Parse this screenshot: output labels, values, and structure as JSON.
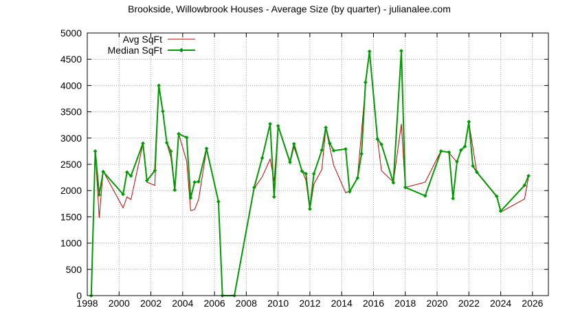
{
  "colors": {
    "avg": "#c00000",
    "median": "#009900",
    "grid": "#a0a0a0",
    "axis": "#000000"
  },
  "chart_data": {
    "type": "line",
    "title": "Brookside, Willowbrook Houses - Average Size (by quarter) - julianalee.com",
    "xlim": [
      1998,
      2027
    ],
    "ylim": [
      0,
      5000
    ],
    "x_ticks": [
      1998,
      2000,
      2002,
      2004,
      2006,
      2008,
      2010,
      2012,
      2014,
      2016,
      2018,
      2020,
      2022,
      2024,
      2026
    ],
    "y_ticks": [
      0,
      500,
      1000,
      1500,
      2000,
      2500,
      3000,
      3500,
      4000,
      4500,
      5000
    ],
    "grid": true,
    "legend_position": "top-left",
    "series": [
      {
        "name": "Avg SqFt",
        "marker": "none",
        "points": [
          [
            1998.25,
            0
          ],
          [
            1998.5,
            2750
          ],
          [
            1998.75,
            1480
          ],
          [
            1999.0,
            2370
          ],
          [
            2000.25,
            1670
          ],
          [
            2000.5,
            1880
          ],
          [
            2000.75,
            1830
          ],
          [
            2001.5,
            2890
          ],
          [
            2001.75,
            2160
          ],
          [
            2002.25,
            2100
          ],
          [
            2002.5,
            3980
          ],
          [
            2002.75,
            3500
          ],
          [
            2003.0,
            2900
          ],
          [
            2003.25,
            2640
          ],
          [
            2003.5,
            2020
          ],
          [
            2003.75,
            3080
          ],
          [
            2004.25,
            2560
          ],
          [
            2004.5,
            1620
          ],
          [
            2004.75,
            1640
          ],
          [
            2005.0,
            1830
          ],
          [
            2005.5,
            2780
          ],
          [
            2006.25,
            1800
          ],
          [
            2006.5,
            0
          ],
          [
            2007.25,
            0
          ],
          [
            2008.5,
            2040
          ],
          [
            2009.0,
            2260
          ],
          [
            2009.5,
            2600
          ],
          [
            2009.75,
            2180
          ],
          [
            2010.0,
            3220
          ],
          [
            2010.75,
            2520
          ],
          [
            2011.0,
            2830
          ],
          [
            2011.5,
            2380
          ],
          [
            2011.75,
            2200
          ],
          [
            2012.0,
            1630
          ],
          [
            2012.25,
            2120
          ],
          [
            2012.75,
            2400
          ],
          [
            2013.0,
            3180
          ],
          [
            2013.5,
            2480
          ],
          [
            2014.25,
            1960
          ],
          [
            2014.5,
            1990
          ],
          [
            2014.75,
            2100
          ],
          [
            2015.0,
            2260
          ],
          [
            2015.5,
            4000
          ],
          [
            2015.75,
            4650
          ],
          [
            2016.25,
            2980
          ],
          [
            2016.5,
            2380
          ],
          [
            2017.25,
            2160
          ],
          [
            2017.75,
            3270
          ],
          [
            2018.0,
            2060
          ],
          [
            2019.25,
            2160
          ],
          [
            2020.25,
            2760
          ],
          [
            2020.75,
            2720
          ],
          [
            2021.25,
            2540
          ],
          [
            2021.5,
            2760
          ],
          [
            2021.75,
            2830
          ],
          [
            2022.0,
            3300
          ],
          [
            2022.5,
            2340
          ],
          [
            2023.75,
            1880
          ],
          [
            2024.0,
            1590
          ],
          [
            2025.5,
            1840
          ],
          [
            2025.75,
            2260
          ]
        ]
      },
      {
        "name": "Median SqFt",
        "marker": "diamond",
        "points": [
          [
            1998.25,
            0
          ],
          [
            1998.5,
            2750
          ],
          [
            1998.75,
            1920
          ],
          [
            1999.0,
            2360
          ],
          [
            2000.25,
            1930
          ],
          [
            2000.5,
            2350
          ],
          [
            2000.75,
            2280
          ],
          [
            2001.5,
            2900
          ],
          [
            2001.75,
            2190
          ],
          [
            2002.25,
            2380
          ],
          [
            2002.5,
            4000
          ],
          [
            2002.75,
            3510
          ],
          [
            2003.0,
            2910
          ],
          [
            2003.25,
            2750
          ],
          [
            2003.5,
            2010
          ],
          [
            2003.75,
            3080
          ],
          [
            2004.25,
            3010
          ],
          [
            2004.5,
            1860
          ],
          [
            2004.75,
            2160
          ],
          [
            2005.0,
            2170
          ],
          [
            2005.5,
            2800
          ],
          [
            2006.25,
            1790
          ],
          [
            2006.5,
            0
          ],
          [
            2007.25,
            0
          ],
          [
            2008.5,
            2060
          ],
          [
            2009.0,
            2620
          ],
          [
            2009.5,
            3270
          ],
          [
            2009.75,
            1880
          ],
          [
            2010.0,
            3230
          ],
          [
            2010.75,
            2540
          ],
          [
            2011.0,
            2890
          ],
          [
            2011.5,
            2370
          ],
          [
            2011.75,
            2320
          ],
          [
            2012.0,
            1650
          ],
          [
            2012.25,
            2320
          ],
          [
            2012.75,
            2770
          ],
          [
            2013.0,
            3200
          ],
          [
            2013.25,
            2900
          ],
          [
            2013.5,
            2760
          ],
          [
            2014.25,
            2790
          ],
          [
            2014.5,
            1980
          ],
          [
            2015.0,
            2240
          ],
          [
            2015.25,
            2700
          ],
          [
            2015.5,
            4060
          ],
          [
            2015.75,
            4650
          ],
          [
            2016.25,
            2980
          ],
          [
            2016.5,
            2880
          ],
          [
            2017.25,
            2150
          ],
          [
            2017.75,
            4660
          ],
          [
            2018.0,
            2060
          ],
          [
            2019.25,
            1900
          ],
          [
            2020.25,
            2750
          ],
          [
            2020.75,
            2730
          ],
          [
            2021.0,
            1850
          ],
          [
            2021.25,
            2550
          ],
          [
            2021.5,
            2770
          ],
          [
            2021.75,
            2840
          ],
          [
            2022.0,
            3310
          ],
          [
            2022.25,
            2470
          ],
          [
            2022.5,
            2350
          ],
          [
            2023.75,
            1890
          ],
          [
            2024.0,
            1610
          ],
          [
            2025.5,
            2100
          ],
          [
            2025.75,
            2280
          ]
        ]
      }
    ]
  }
}
